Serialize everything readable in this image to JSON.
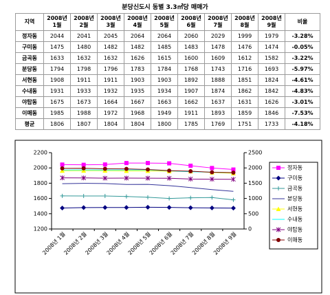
{
  "title": "분당신도시 동별 3.3㎡당 매매가",
  "table": {
    "header": [
      "지역",
      "2008년 1월",
      "2008년 2월",
      "2008년 3월",
      "2008년 4월",
      "2008년 5월",
      "2008년 6월",
      "2008년 7월",
      "2008년 8월",
      "2008년 9월",
      "비율"
    ],
    "rows": [
      [
        "정자동",
        "2044",
        "2041",
        "2045",
        "2064",
        "2064",
        "2060",
        "2029",
        "1999",
        "1979",
        "-3.28%"
      ],
      [
        "구미동",
        "1475",
        "1480",
        "1482",
        "1482",
        "1485",
        "1483",
        "1478",
        "1476",
        "1474",
        "-0.05%"
      ],
      [
        "금곡동",
        "1633",
        "1632",
        "1632",
        "1626",
        "1615",
        "1600",
        "1609",
        "1612",
        "1582",
        "-3.22%"
      ],
      [
        "분당동",
        "1794",
        "1798",
        "1796",
        "1783",
        "1784",
        "1768",
        "1743",
        "1716",
        "1693",
        "-5.97%"
      ],
      [
        "서현동",
        "1908",
        "1911",
        "1911",
        "1903",
        "1903",
        "1892",
        "1888",
        "1851",
        "1824",
        "-4.61%"
      ],
      [
        "수내동",
        "1931",
        "1933",
        "1932",
        "1935",
        "1934",
        "1907",
        "1874",
        "1862",
        "1842",
        "-4.83%"
      ],
      [
        "야탑동",
        "1675",
        "1673",
        "1664",
        "1667",
        "1663",
        "1662",
        "1637",
        "1631",
        "1626",
        "-3.01%"
      ],
      [
        "이매동",
        "1985",
        "1988",
        "1972",
        "1968",
        "1949",
        "1911",
        "1893",
        "1859",
        "1846",
        "-7.53%"
      ],
      [
        "평균",
        "1806",
        "1807",
        "1804",
        "1804",
        "1800",
        "1785",
        "1769",
        "1751",
        "1733",
        "-4.18%"
      ]
    ]
  },
  "chart_data": {
    "type": "line",
    "categories": [
      "2008년 1월",
      "2008년 2월",
      "2008년 3월",
      "2008년 4월",
      "2008년 5월",
      "2008년 6월",
      "2008년 7월",
      "2008년 8월",
      "2008년 9월"
    ],
    "ylim": [
      1200,
      2200
    ],
    "yticks": [
      1200,
      1400,
      1600,
      1800,
      2000,
      2200
    ],
    "y2lim": [
      0,
      2500
    ],
    "y2ticks": [
      0,
      500,
      1000,
      1500,
      2000,
      2500
    ],
    "legend": "right",
    "series": [
      {
        "name": "정자동",
        "color": "#ff00ff",
        "marker": "square",
        "values": [
          2044,
          2041,
          2045,
          2064,
          2064,
          2060,
          2029,
          1999,
          1979
        ]
      },
      {
        "name": "구미동",
        "color": "#000080",
        "marker": "diamond",
        "values": [
          1475,
          1480,
          1482,
          1482,
          1485,
          1483,
          1478,
          1476,
          1474
        ]
      },
      {
        "name": "금곡동",
        "color": "#339999",
        "marker": "plus",
        "values": [
          1633,
          1632,
          1632,
          1626,
          1615,
          1600,
          1609,
          1612,
          1582
        ]
      },
      {
        "name": "분당동",
        "color": "#333399",
        "marker": "none",
        "values": [
          1794,
          1798,
          1796,
          1783,
          1784,
          1768,
          1743,
          1716,
          1693
        ]
      },
      {
        "name": "서현동",
        "color": "#ffff00",
        "marker": "triangle",
        "axis": "y2",
        "values": [
          1908,
          1911,
          1911,
          1903,
          1903,
          1892,
          1888,
          1851,
          1824
        ]
      },
      {
        "name": "수내동",
        "color": "#00ffff",
        "marker": "none",
        "axis": "y2",
        "values": [
          1931,
          1933,
          1932,
          1935,
          1934,
          1907,
          1874,
          1862,
          1842
        ]
      },
      {
        "name": "야탑동",
        "color": "#800080",
        "marker": "star",
        "axis": "y2",
        "values": [
          1675,
          1673,
          1664,
          1667,
          1663,
          1662,
          1637,
          1631,
          1626
        ]
      },
      {
        "name": "이매동",
        "color": "#800000",
        "marker": "circle",
        "axis": "y2",
        "values": [
          1985,
          1988,
          1972,
          1968,
          1949,
          1911,
          1893,
          1859,
          1846
        ]
      }
    ]
  }
}
